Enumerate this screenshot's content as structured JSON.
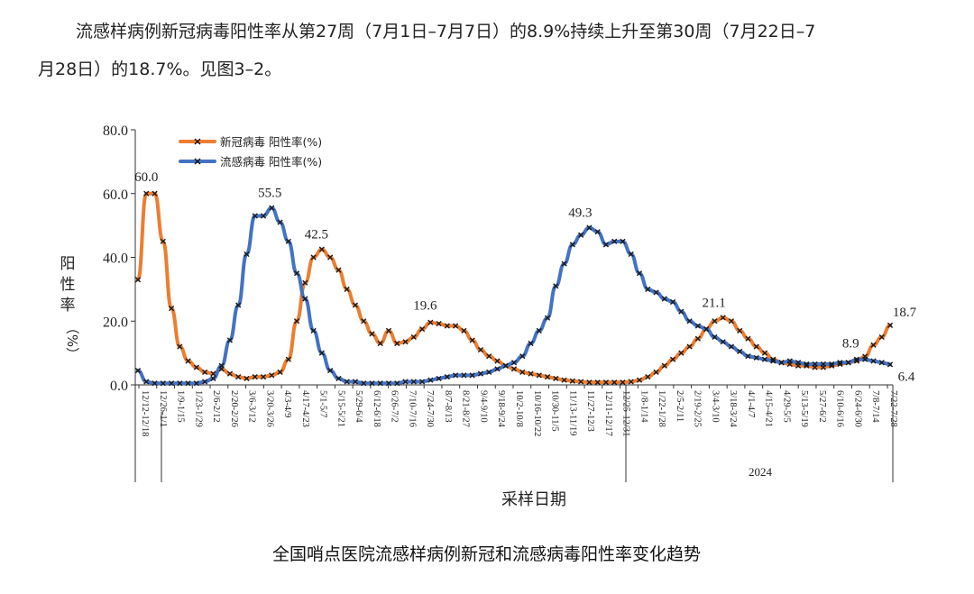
{
  "paragraph": {
    "line1": "流感样病例新冠病毒阳性率从第27周（7月1日–7月7日）的8.9%持续上升至第30周（7月22日–7",
    "line2": "月28日）的18.7%。见图3–2。"
  },
  "caption": "全国哨点医院流感样病例新冠和流感病毒阳性率变化趋势",
  "colors": {
    "covid": "#ED7D31",
    "flu": "#4472C4",
    "marker": "#1a1a1a"
  },
  "chart_data": {
    "type": "line",
    "ylabel_chars": [
      "阳",
      "性",
      "率"
    ],
    "ylabel_unit": "（%）",
    "xlabel": "采样日期",
    "ylim": [
      0,
      80
    ],
    "yticks": [
      "0.0",
      "20.0",
      "40.0",
      "60.0",
      "80.0"
    ],
    "x_tick_labels": [
      "12/12-12/18",
      "12/26-1/1",
      "1/9-1/15",
      "1/23-1/29",
      "2/6-2/12",
      "2/20-2/26",
      "3/6-3/12",
      "3/20-3/26",
      "4/3-4/9",
      "4/17-4/23",
      "5/1-5/7",
      "5/15-5/21",
      "5/29-6/4",
      "6/12-6/18",
      "6/26-7/2",
      "7/10-7/16",
      "7/24-7/30",
      "8/7-8/13",
      "8/21-8/27",
      "9/4-9/10",
      "9/18-9/24",
      "10/2-10/8",
      "10/16-10/22",
      "10/30-11/5",
      "11/13-11/19",
      "11/27-12/3",
      "12/11-12/17",
      "12/25-12/31",
      "1/8-1/14",
      "1/22-1/28",
      "2/5-2/11",
      "2/19-2/25",
      "3/4-3/10",
      "3/18-3/24",
      "4/1-4/7",
      "4/15-4/21",
      "4/29-5/5",
      "5/13-5/19",
      "5/27-6/2",
      "6/10-6/16",
      "6/24-6/30",
      "7/8-7/14",
      "7/22-7/28"
    ],
    "year_labels": [
      "2024"
    ],
    "series": [
      {
        "name": "新冠病毒 阳性率(%)",
        "values": [
          33,
          60,
          60,
          45,
          24,
          12,
          7.5,
          5.5,
          4,
          3.5,
          5,
          3.5,
          2.5,
          2,
          2.5,
          2.5,
          3,
          4,
          8,
          20,
          32,
          40,
          42.5,
          40,
          36,
          30,
          25,
          20,
          16,
          13,
          17,
          13,
          13.5,
          15,
          17.5,
          19.6,
          19.2,
          18.5,
          18.5,
          17,
          14,
          11,
          9,
          7.5,
          6,
          5,
          4,
          3.5,
          3,
          2.5,
          2,
          1.5,
          1.2,
          1,
          0.8,
          0.8,
          0.8,
          0.8,
          0.8,
          1,
          1.5,
          2.5,
          4,
          6,
          8,
          10,
          12,
          14.5,
          17.5,
          20,
          21.1,
          20,
          17,
          14.5,
          12,
          10,
          8,
          7,
          6.5,
          6,
          6,
          5.5,
          5.5,
          6,
          6.5,
          7,
          7.5,
          8.9,
          12.5,
          15,
          18.7
        ]
      },
      {
        "name": "流感病毒 阳性率(%)",
        "values": [
          4.5,
          1,
          0.5,
          0.5,
          0.5,
          0.5,
          0.5,
          0.5,
          1,
          2,
          6,
          14,
          25,
          41,
          53,
          53,
          55.5,
          51,
          45,
          35,
          27,
          17,
          10,
          4.5,
          2,
          1,
          1,
          0.5,
          0.5,
          0.5,
          0.5,
          0.5,
          1,
          1,
          1,
          1.5,
          2,
          2.5,
          3,
          3,
          3,
          3.5,
          4,
          5,
          6,
          7,
          9,
          13,
          17,
          21,
          31,
          38,
          44,
          47,
          49.3,
          48,
          44,
          45,
          45,
          41,
          35,
          30,
          29,
          27,
          26,
          23,
          20,
          18.5,
          17.5,
          15,
          13.5,
          12,
          10.5,
          9,
          8.5,
          8,
          7.5,
          7,
          7.5,
          7,
          6.5,
          6.5,
          6.5,
          6.5,
          7,
          7,
          8,
          8,
          7.5,
          7,
          6.4
        ]
      }
    ],
    "data_labels": [
      {
        "series": 0,
        "index": 1,
        "text": "60.0"
      },
      {
        "series": 1,
        "index": 16,
        "text": "55.5"
      },
      {
        "series": 0,
        "index": 22,
        "text": "42.5"
      },
      {
        "series": 0,
        "index": 35,
        "text": "19.6"
      },
      {
        "series": 1,
        "index": 54,
        "text": "49.3"
      },
      {
        "series": 0,
        "index": 70,
        "text": "21.1"
      },
      {
        "series": 0,
        "index": 87,
        "text": "8.9"
      },
      {
        "series": 0,
        "index": 90,
        "text": "18.7"
      },
      {
        "series": 1,
        "index": 90,
        "text": "6.4"
      }
    ],
    "legend_position": "top-left",
    "grid": false
  }
}
